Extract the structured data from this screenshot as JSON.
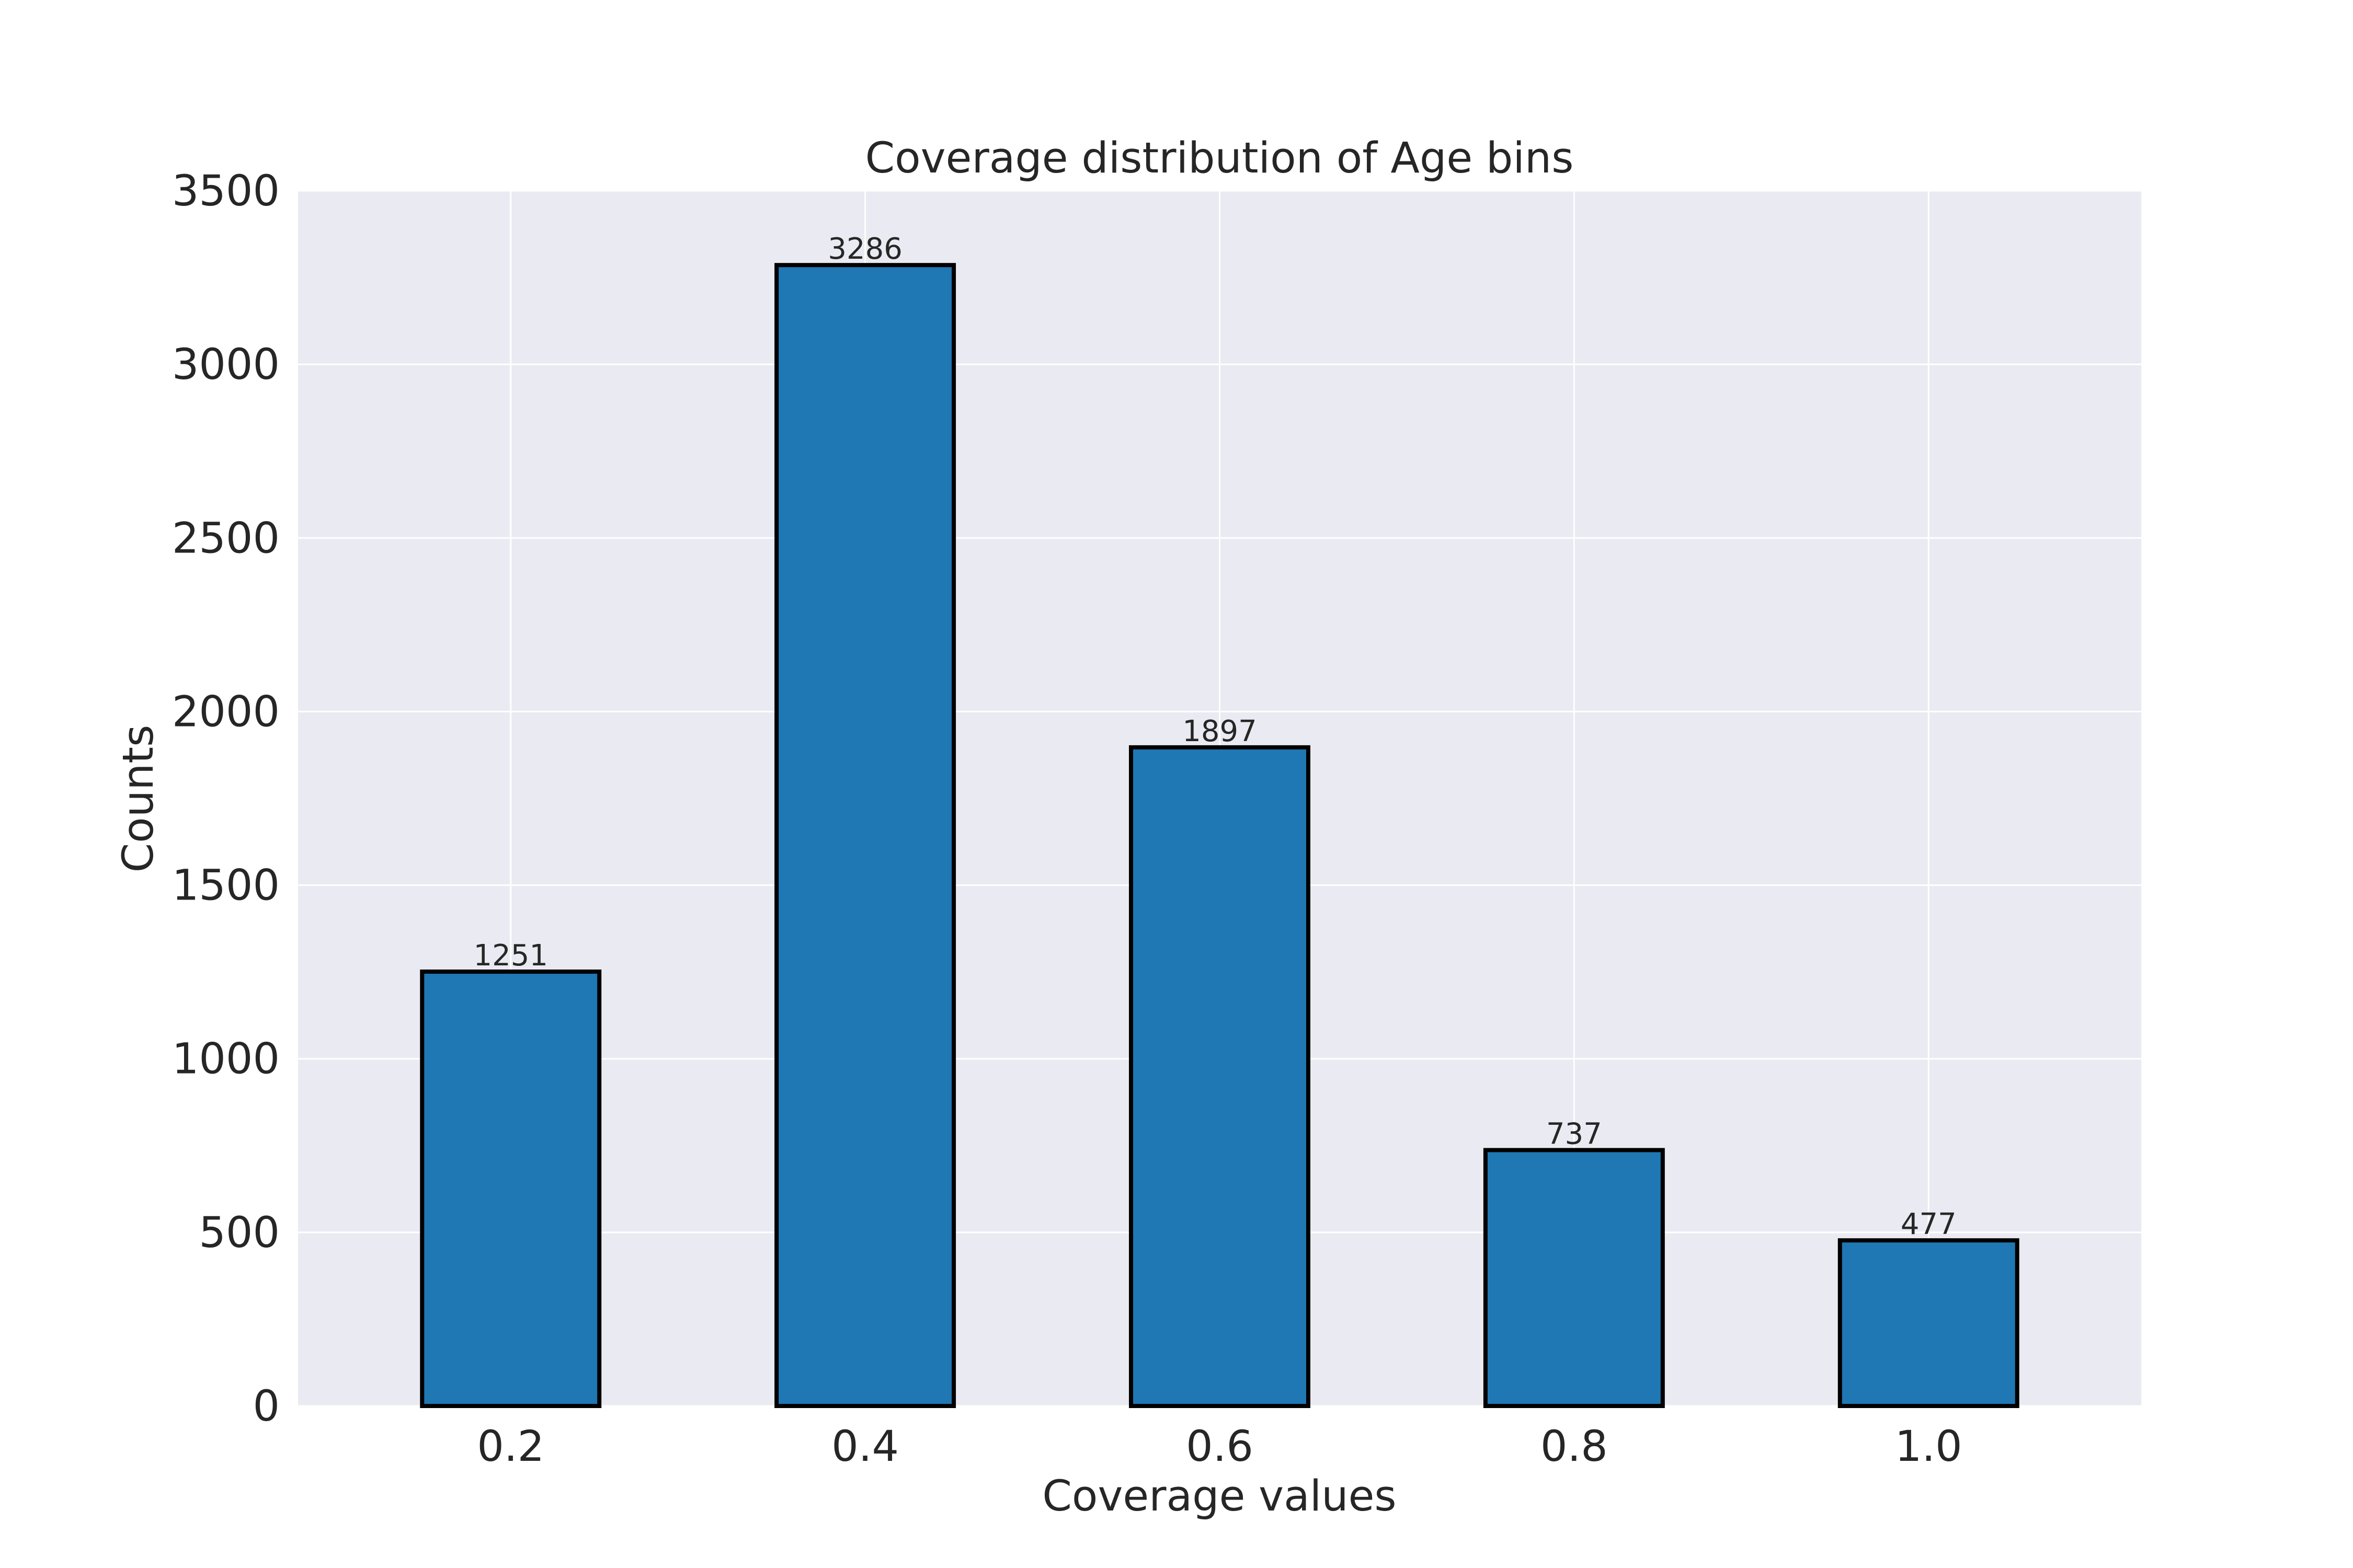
{
  "chart_data": {
    "type": "bar",
    "title": "Coverage distribution of Age bins",
    "xlabel": "Coverage values",
    "ylabel": "Counts",
    "categories": [
      "0.2",
      "0.4",
      "0.6",
      "0.8",
      "1.0"
    ],
    "values": [
      1251,
      3286,
      1897,
      737,
      477
    ],
    "data_labels": [
      "1251",
      "3286",
      "1897",
      "737",
      "477"
    ],
    "ylim": [
      0,
      3500
    ],
    "yticks": [
      0,
      500,
      1000,
      1500,
      2000,
      2500,
      3000,
      3500
    ],
    "grid": true,
    "legend": "none",
    "colors": {
      "bar_fill": "#1f77b4",
      "bar_edge": "#000000",
      "plot_background": "#eaeaf2",
      "grid": "#ffffff",
      "text": "#262626"
    }
  }
}
